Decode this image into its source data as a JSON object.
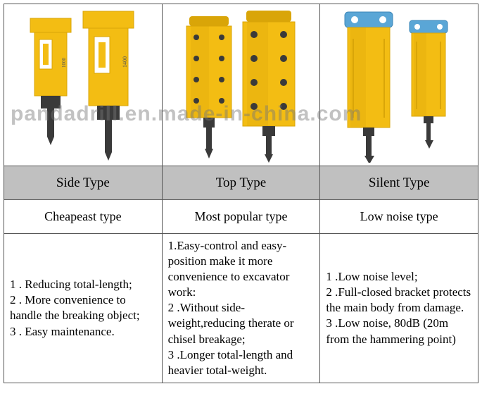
{
  "watermark": "pandadrill.en.made-in-china.com",
  "colors": {
    "breaker_yellow": "#f3bd13",
    "breaker_yellow_shadow": "#d9a508",
    "chisel_dark": "#3a3a3a",
    "silent_top_blue": "#5aa6d6",
    "silent_top_blue_shadow": "#3d87b8",
    "header_gray": "#c0c0c0",
    "border": "#555555",
    "text": "#000000"
  },
  "columns": [
    {
      "type_label": "Side Type",
      "subtype_label": "Cheapeast type",
      "desc_html": "1 . Reducing total-length;<br>2 . More convenience to handle the breaking object;<br>3 . Easy maintenance."
    },
    {
      "type_label": "Top Type",
      "subtype_label": "Most popular type",
      "desc_html": "1.Easy-control and easy-position make it more convenience to excavator work:<br>2 .Without side-weight,reducing therate or chisel breakage;<br>3 .Longer total-length and heavier total-weight."
    },
    {
      "type_label": "Silent Type",
      "subtype_label": "Low noise type",
      "desc_html": "1 .Low noise level;<br>2 .Full-closed bracket protects the main body from damage.<br>3 .Low noise, 80dB (20m from the hammering point)"
    }
  ]
}
